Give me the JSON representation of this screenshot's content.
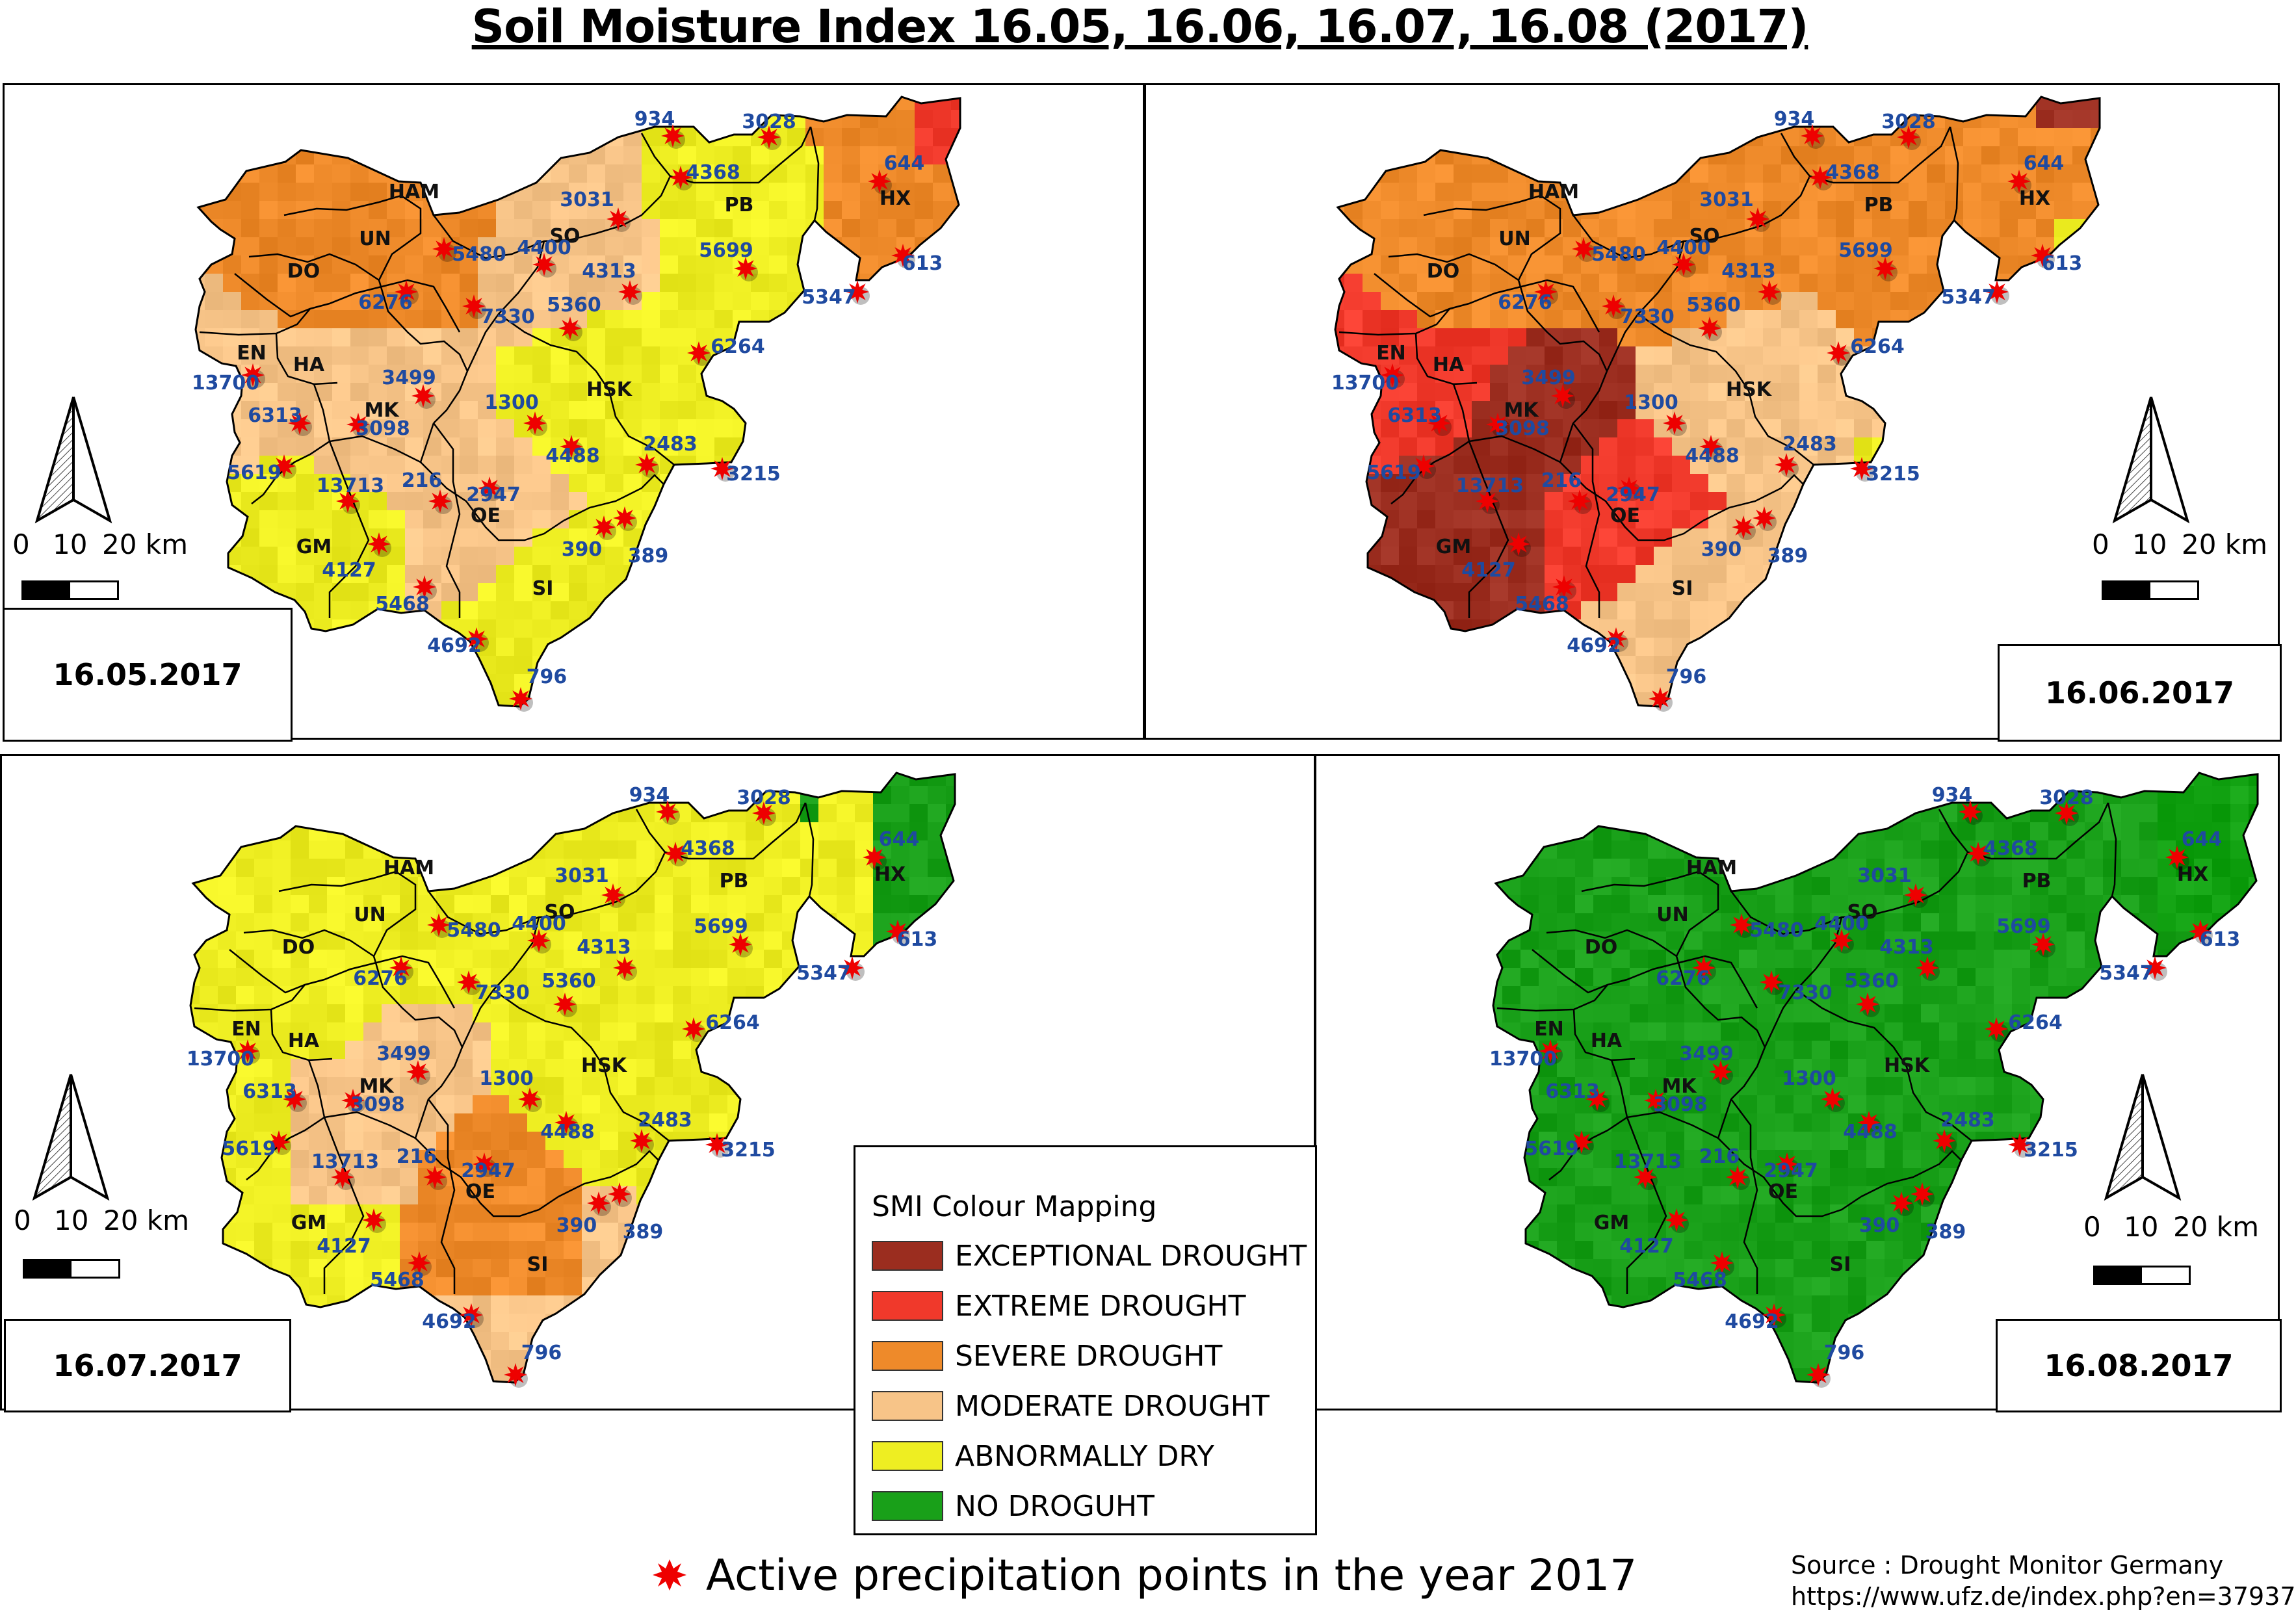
{
  "title": "Soil Moisture Index 16.05, 16.06, 16.07, 16.08 (2017)",
  "colors": {
    "exceptional": "#9b2d1f",
    "extreme": "#f0392b",
    "severe": "#ee8a2a",
    "moderate": "#f7c488",
    "dry": "#eeee22",
    "none": "#19a019",
    "point": "#ee0000",
    "label": "#1f4aa0"
  },
  "regions": [
    {
      "name": "HAM"
    },
    {
      "name": "UN"
    },
    {
      "name": "DO"
    },
    {
      "name": "EN"
    },
    {
      "name": "HA"
    },
    {
      "name": "MK"
    },
    {
      "name": "SO"
    },
    {
      "name": "PB"
    },
    {
      "name": "HX"
    },
    {
      "name": "HSK"
    },
    {
      "name": "OE"
    },
    {
      "name": "GM"
    },
    {
      "name": "SI"
    }
  ],
  "points": [
    "934",
    "3028",
    "4368",
    "644",
    "3031",
    "5480",
    "4400",
    "4313",
    "5699",
    "613",
    "5347",
    "6276",
    "7330",
    "5360",
    "6264",
    "13700",
    "3499",
    "1300",
    "6313",
    "3098",
    "2483",
    "4488",
    "3215",
    "5619",
    "13713",
    "216",
    "2947",
    "390",
    "389",
    "4127",
    "5468",
    "4692",
    "796"
  ],
  "panels": [
    {
      "date": "16.05.2017",
      "scale_labels": [
        "0",
        "10",
        "20 km"
      ]
    },
    {
      "date": "16.06.2017",
      "scale_labels": [
        "0",
        "10",
        "20 km"
      ]
    },
    {
      "date": "16.07.2017",
      "scale_labels": [
        "0",
        "10",
        "20 km"
      ]
    },
    {
      "date": "16.08.2017",
      "scale_labels": [
        "0",
        "10",
        "20 km"
      ]
    }
  ],
  "legend": {
    "title": "SMI Colour Mapping",
    "items": [
      {
        "label": "EXCEPTIONAL DROUGHT",
        "color": "#9b2d1f"
      },
      {
        "label": "EXTREME DROUGHT",
        "color": "#f0392b"
      },
      {
        "label": "SEVERE DROUGHT",
        "color": "#ee8a2a"
      },
      {
        "label": "MODERATE DROUGHT",
        "color": "#f7c488"
      },
      {
        "label": "ABNORMALLY DRY",
        "color": "#eeee22"
      },
      {
        "label": "NO DROGUHT",
        "color": "#19a019"
      }
    ]
  },
  "points_note": "Active precipitation points in the year 2017",
  "source": {
    "line1": "Source : Drought Monitor Germany",
    "line2": "https://www.ufz.de/index.php?en=37937"
  }
}
